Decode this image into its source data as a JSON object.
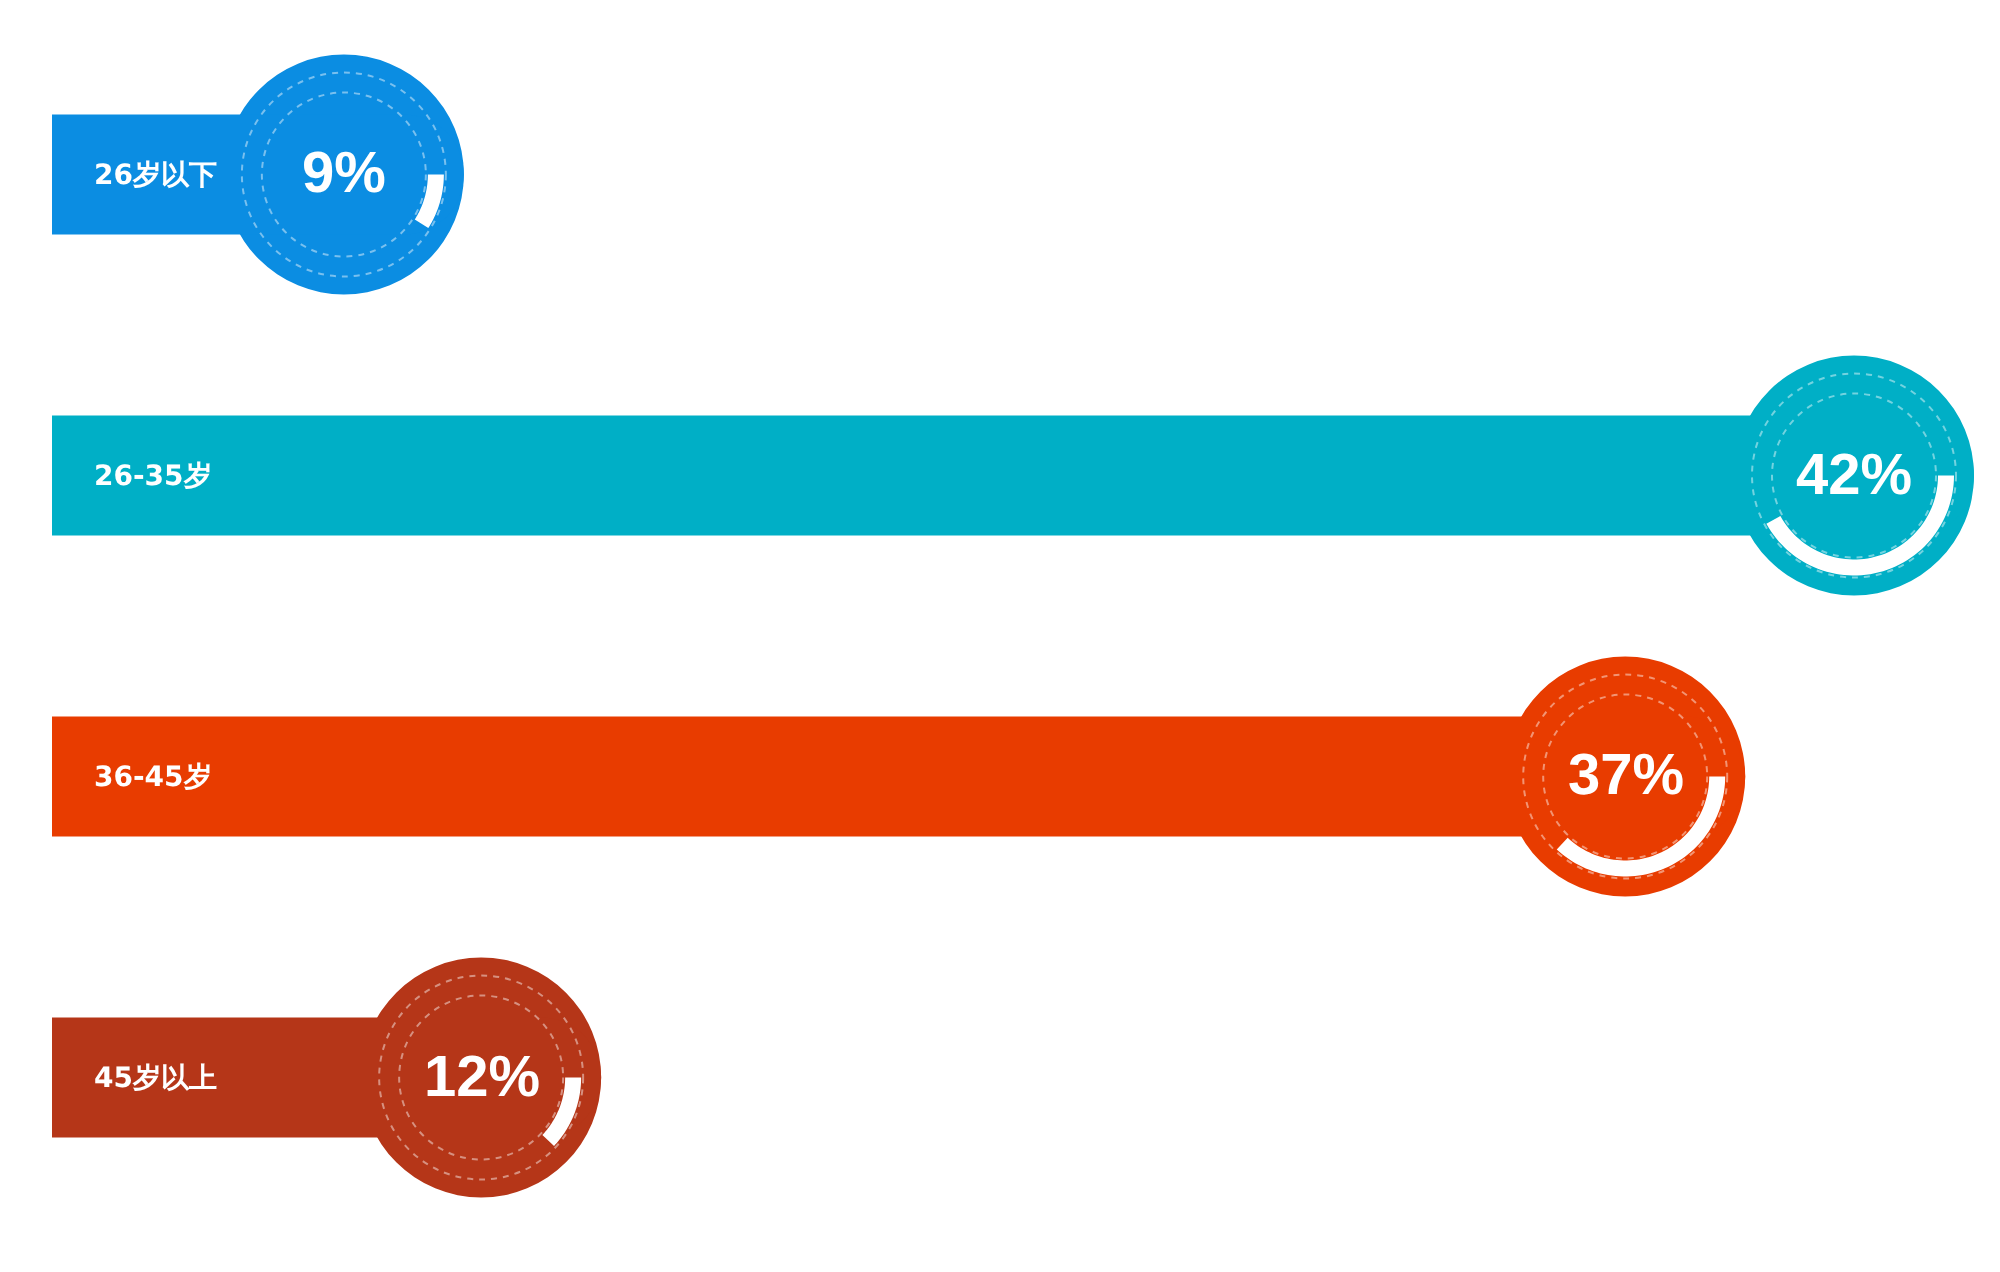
{
  "chart_data": {
    "type": "bar",
    "orientation": "horizontal",
    "categories": [
      "26岁以下",
      "26-35岁",
      "36-45岁",
      "45岁以上"
    ],
    "values": [
      9,
      42,
      37,
      12
    ],
    "colors": [
      "#0b8de2",
      "#00afc6",
      "#e83c00",
      "#b53618"
    ],
    "value_labels": [
      "9%",
      "42%",
      "37%",
      "12%"
    ],
    "tick_labels": "y"
  }
}
